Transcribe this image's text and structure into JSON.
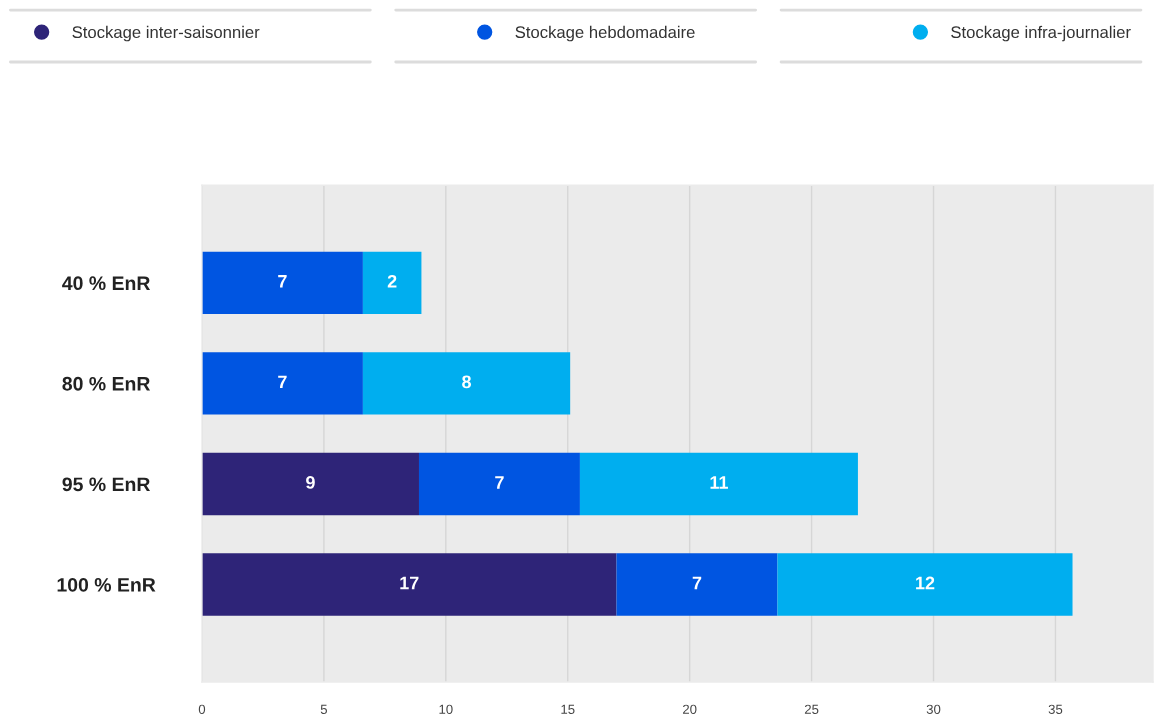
{
  "chart_data": {
    "type": "bar",
    "orientation": "horizontal",
    "stacked": true,
    "categories": [
      "40 % EnR",
      "80 % EnR",
      "95 % EnR",
      "100 % EnR"
    ],
    "series": [
      {
        "name": "Stockage inter-saisonnier",
        "color": "#2e2478",
        "values": [
          null,
          null,
          8.9,
          17.0
        ],
        "value_labels": [
          null,
          null,
          "9",
          "17"
        ]
      },
      {
        "name": "Stockage hebdomadaire",
        "color": "#0055e1",
        "values": [
          6.6,
          6.6,
          6.6,
          6.6
        ],
        "value_labels": [
          "7",
          "7",
          "7",
          "7"
        ]
      },
      {
        "name": "Stockage infra-journalier",
        "color": "#00aeef",
        "values": [
          2.4,
          8.5,
          11.4,
          12.1
        ],
        "value_labels": [
          "2",
          "8",
          "11",
          "12"
        ]
      }
    ],
    "xlim": [
      0,
      39
    ],
    "xticks": [
      0,
      5,
      10,
      15,
      20,
      25,
      30,
      35
    ],
    "grid": "x",
    "legend": "top"
  }
}
